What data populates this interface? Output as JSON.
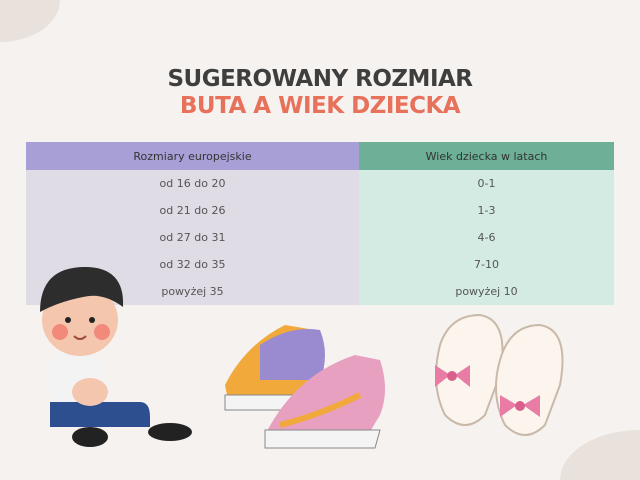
{
  "title": {
    "line1": "SUGEROWANY ROZMIAR",
    "line2": "BUTA A WIEK DZIECKA"
  },
  "colors": {
    "title_dark": "#3e3e3e",
    "title_accent": "#e8715b",
    "header_left": "#a99fd7",
    "header_right": "#6daf97",
    "body_left": "#dfdce6",
    "body_right": "#d3ebe2"
  },
  "table": {
    "headers": [
      "Rozmiary europejskie",
      "Wiek dziecka w latach"
    ],
    "rows": [
      [
        "od 16 do 20",
        "0-1"
      ],
      [
        "od 21 do 26",
        "1-3"
      ],
      [
        "od 27 do 31",
        "4-6"
      ],
      [
        "od 32 do 35",
        "7-10"
      ],
      [
        "powyżej 35",
        "powyżej 10"
      ]
    ]
  },
  "illustrations": [
    "child-tying-shoe",
    "sneakers",
    "baby-sandals"
  ]
}
